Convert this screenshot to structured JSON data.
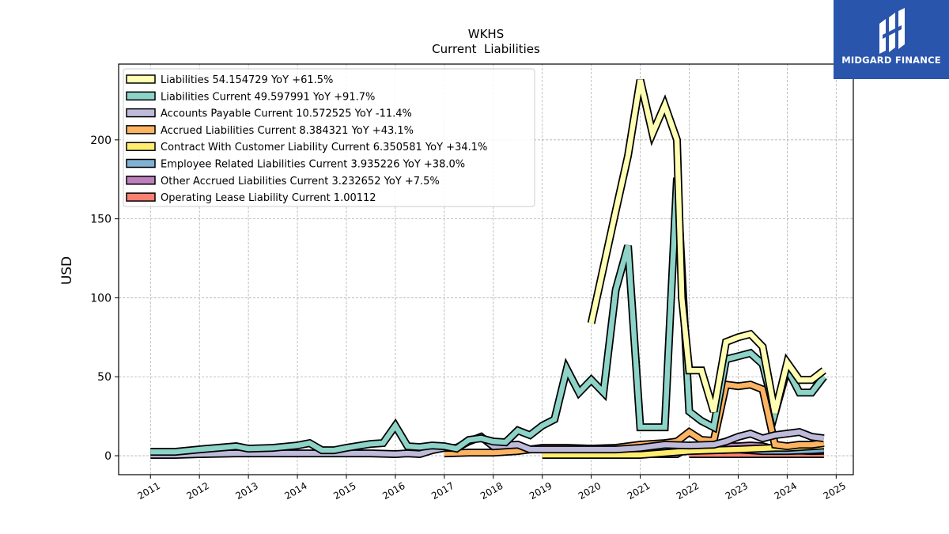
{
  "brand": {
    "name": "MIDGARD FINANCE"
  },
  "chart_data": {
    "type": "line",
    "title": "WKHS",
    "subtitle": "Current  Liabilities",
    "ylabel": "USD",
    "xlabel": "",
    "xlim": [
      2010.35,
      2025.35
    ],
    "ylim": [
      -12,
      248
    ],
    "x_ticks": [
      2011,
      2012,
      2013,
      2014,
      2015,
      2016,
      2017,
      2018,
      2019,
      2020,
      2021,
      2022,
      2023,
      2024,
      2025
    ],
    "y_ticks": [
      0,
      50,
      100,
      150,
      200
    ],
    "grid": true,
    "legend_position": "top-left",
    "series": [
      {
        "name": "Liabilities  54.154729 YoY +61.5%",
        "color": "#ffffb3",
        "points": [
          [
            2020.0,
            84
          ],
          [
            2020.5,
            155
          ],
          [
            2020.75,
            190
          ],
          [
            2021.0,
            238
          ],
          [
            2021.25,
            204
          ],
          [
            2021.5,
            222
          ],
          [
            2021.75,
            200
          ],
          [
            2021.85,
            100
          ],
          [
            2022.0,
            54
          ],
          [
            2022.25,
            54
          ],
          [
            2022.5,
            28
          ],
          [
            2022.75,
            72
          ],
          [
            2023.0,
            75
          ],
          [
            2023.25,
            77
          ],
          [
            2023.5,
            69
          ],
          [
            2023.75,
            27
          ],
          [
            2024.0,
            59
          ],
          [
            2024.25,
            48
          ],
          [
            2024.5,
            48
          ],
          [
            2024.75,
            54
          ]
        ]
      },
      {
        "name": "Liabilities Current  49.597991 YoY +91.7%",
        "color": "#8dd3c7",
        "points": [
          [
            2011.0,
            2.5
          ],
          [
            2011.5,
            2.5
          ],
          [
            2012.0,
            4
          ],
          [
            2012.75,
            6
          ],
          [
            2013.0,
            4.5
          ],
          [
            2013.5,
            5
          ],
          [
            2014.0,
            6.5
          ],
          [
            2014.25,
            8
          ],
          [
            2014.5,
            3.5
          ],
          [
            2014.75,
            3.5
          ],
          [
            2015.0,
            5
          ],
          [
            2015.5,
            7.5
          ],
          [
            2015.75,
            8
          ],
          [
            2016.0,
            19
          ],
          [
            2016.25,
            6
          ],
          [
            2016.5,
            5.5
          ],
          [
            2016.75,
            6.5
          ],
          [
            2017.0,
            6
          ],
          [
            2017.25,
            4.5
          ],
          [
            2017.5,
            10
          ],
          [
            2017.75,
            11
          ],
          [
            2018.0,
            9
          ],
          [
            2018.25,
            8.5
          ],
          [
            2018.5,
            16
          ],
          [
            2018.75,
            13
          ],
          [
            2019.0,
            19
          ],
          [
            2019.25,
            23
          ],
          [
            2019.5,
            55
          ],
          [
            2019.75,
            40
          ],
          [
            2020.0,
            48
          ],
          [
            2020.25,
            40
          ],
          [
            2020.5,
            105
          ],
          [
            2020.75,
            133
          ],
          [
            2021.0,
            18
          ],
          [
            2021.25,
            18
          ],
          [
            2021.5,
            18
          ],
          [
            2021.75,
            176
          ],
          [
            2022.0,
            28
          ],
          [
            2022.25,
            22
          ],
          [
            2022.5,
            18
          ],
          [
            2022.75,
            61
          ],
          [
            2023.0,
            63
          ],
          [
            2023.25,
            65
          ],
          [
            2023.5,
            58
          ],
          [
            2023.75,
            27
          ],
          [
            2024.0,
            55
          ],
          [
            2024.25,
            40
          ],
          [
            2024.5,
            40
          ],
          [
            2024.75,
            50
          ]
        ]
      },
      {
        "name": "Accounts Payable Current  10.572525 YoY -11.4%",
        "color": "#bebada",
        "points": [
          [
            2011.0,
            0.5
          ],
          [
            2011.5,
            0.5
          ],
          [
            2012.0,
            1
          ],
          [
            2012.75,
            1.5
          ],
          [
            2013.0,
            1.5
          ],
          [
            2013.5,
            1.5
          ],
          [
            2014.0,
            1.5
          ],
          [
            2014.5,
            1.5
          ],
          [
            2015.0,
            1.5
          ],
          [
            2015.5,
            1.5
          ],
          [
            2016.0,
            1
          ],
          [
            2016.25,
            1.5
          ],
          [
            2016.5,
            1
          ],
          [
            2016.75,
            3.5
          ],
          [
            2017.0,
            5
          ],
          [
            2017.25,
            5
          ],
          [
            2017.5,
            9
          ],
          [
            2017.75,
            12
          ],
          [
            2018.0,
            6
          ],
          [
            2018.5,
            7
          ],
          [
            2018.75,
            4
          ],
          [
            2019.0,
            4
          ],
          [
            2019.5,
            4
          ],
          [
            2020.0,
            4
          ],
          [
            2020.5,
            4
          ],
          [
            2021.0,
            5
          ],
          [
            2021.5,
            7
          ],
          [
            2022.0,
            6.5
          ],
          [
            2022.5,
            7
          ],
          [
            2022.75,
            9
          ],
          [
            2023.0,
            12
          ],
          [
            2023.25,
            14
          ],
          [
            2023.5,
            11
          ],
          [
            2023.75,
            13
          ],
          [
            2024.0,
            14
          ],
          [
            2024.25,
            15
          ],
          [
            2024.5,
            12
          ],
          [
            2024.75,
            11
          ]
        ]
      },
      {
        "name": "Accrued Liabilities Current  8.384321 YoY +43.1%",
        "color": "#fdb462",
        "points": [
          [
            2017.0,
            1.5
          ],
          [
            2017.5,
            2
          ],
          [
            2018.0,
            2
          ],
          [
            2018.5,
            3
          ],
          [
            2019.0,
            5
          ],
          [
            2019.5,
            5
          ],
          [
            2020.0,
            4.5
          ],
          [
            2020.5,
            5
          ],
          [
            2021.0,
            7
          ],
          [
            2021.5,
            8
          ],
          [
            2021.75,
            9
          ],
          [
            2022.0,
            15
          ],
          [
            2022.25,
            10
          ],
          [
            2022.5,
            9.5
          ],
          [
            2022.75,
            45
          ],
          [
            2023.0,
            44
          ],
          [
            2023.25,
            45
          ],
          [
            2023.5,
            42
          ],
          [
            2023.75,
            7
          ],
          [
            2024.0,
            6
          ],
          [
            2024.25,
            7
          ],
          [
            2024.5,
            7
          ],
          [
            2024.75,
            8
          ]
        ]
      },
      {
        "name": "Contract With Customer Liability Current  6.350581 YoY +34.1%",
        "color": "#ffed6f",
        "points": [
          [
            2019.0,
            0.5
          ],
          [
            2019.5,
            0.5
          ],
          [
            2020.0,
            0.5
          ],
          [
            2020.5,
            0.5
          ],
          [
            2021.0,
            0.5
          ],
          [
            2022.0,
            3
          ],
          [
            2023.0,
            4
          ],
          [
            2023.75,
            5
          ],
          [
            2024.0,
            5
          ],
          [
            2024.5,
            6
          ],
          [
            2024.75,
            6.5
          ]
        ]
      },
      {
        "name": "Employee Related Liabilities Current  3.935226 YoY +38.0%",
        "color": "#80b1d3",
        "points": [
          [
            2020.0,
            1.5
          ],
          [
            2020.5,
            2
          ],
          [
            2021.0,
            2.5
          ],
          [
            2021.5,
            3
          ],
          [
            2022.0,
            3.5
          ],
          [
            2022.5,
            3.5
          ],
          [
            2023.0,
            4
          ],
          [
            2023.5,
            3
          ],
          [
            2024.0,
            3
          ],
          [
            2024.5,
            3.5
          ],
          [
            2024.75,
            4
          ]
        ]
      },
      {
        "name": "Other Accrued Liabilities Current  3.232652 YoY +7.5%",
        "color": "#bc80bd",
        "points": [
          [
            2020.0,
            1
          ],
          [
            2020.5,
            1
          ],
          [
            2021.0,
            1
          ],
          [
            2021.5,
            1
          ],
          [
            2021.75,
            1
          ],
          [
            2022.0,
            5
          ],
          [
            2022.5,
            6
          ],
          [
            2023.0,
            6
          ],
          [
            2023.25,
            6.5
          ],
          [
            2023.5,
            6
          ],
          [
            2023.75,
            4
          ],
          [
            2024.0,
            3.5
          ],
          [
            2024.5,
            3
          ],
          [
            2024.75,
            3.2
          ]
        ]
      },
      {
        "name": "Operating Lease Liability Current  1.00112",
        "color": "#fb8072",
        "points": [
          [
            2022.0,
            1
          ],
          [
            2022.5,
            1
          ],
          [
            2023.0,
            1
          ],
          [
            2023.5,
            1
          ],
          [
            2024.0,
            1
          ],
          [
            2024.5,
            1
          ],
          [
            2024.75,
            1
          ]
        ]
      }
    ]
  }
}
